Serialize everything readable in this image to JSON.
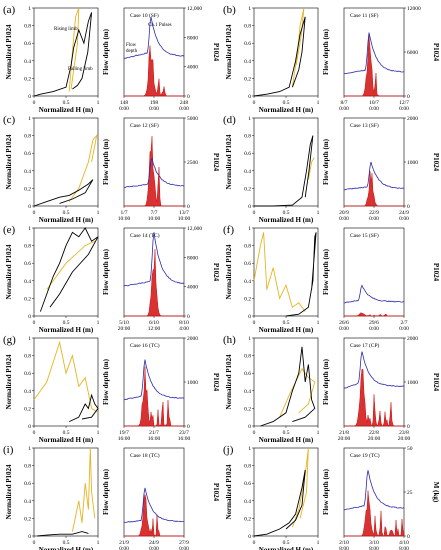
{
  "colors": {
    "hysteresis_event": "#000000",
    "hysteresis_reference": "#e6b422",
    "flow_depth": "#2b2bb0",
    "p1024": "#d10f0f"
  },
  "axis_labels": {
    "normalized_p1024": "Normalized P1024",
    "normalized_h": "Normalized H (m)",
    "flow_depth": "Flow depth (m)",
    "p1024": "P1024",
    "m_kg": "M (kg)"
  },
  "unit_ticks": [
    "0",
    "0.5",
    "1"
  ],
  "chart_data": [
    {
      "id": "a",
      "label": "(a)",
      "case": "Case 10 (SF)",
      "right_axis": "P1024",
      "left_ticks": [
        "0",
        "0.2",
        "0.4",
        "0.6",
        "0.8",
        "1"
      ],
      "right_ticks": [
        "0",
        "4000",
        "8000",
        "12,000"
      ],
      "time_ticks": [
        {
          "day": "148",
          "time": "0:00"
        },
        {
          "day": "198",
          "time": "0:00"
        },
        {
          "day": "248",
          "time": "0:00"
        }
      ],
      "annotations": [
        "Rising limb",
        "Falling limb",
        "Flow depth",
        "Ch.1 Pulses"
      ],
      "peak_pos": 0.45,
      "peak_h": 0.9,
      "base_depth": 0.5,
      "red_peak": 0.72,
      "spikes": 2,
      "hyst_black": [
        [
          0,
          0
        ],
        [
          0.1,
          0.02
        ],
        [
          0.3,
          0.05
        ],
        [
          0.5,
          0.1
        ],
        [
          0.58,
          0.35
        ],
        [
          0.62,
          0.55
        ],
        [
          0.7,
          0.75
        ],
        [
          0.78,
          0.6
        ],
        [
          0.85,
          0.85
        ],
        [
          0.9,
          0.95
        ],
        [
          0.84,
          0.5
        ],
        [
          0.75,
          0.2
        ],
        [
          0.68,
          0.12
        ],
        [
          0.6,
          0.08
        ]
      ],
      "hyst_yellow": [
        [
          0.55,
          0.05
        ],
        [
          0.6,
          0.5
        ],
        [
          0.65,
          0.9
        ],
        [
          0.7,
          1.0
        ],
        [
          0.68,
          0.6
        ],
        [
          0.62,
          0.3
        ],
        [
          0.58,
          0.08
        ]
      ]
    },
    {
      "id": "b",
      "label": "(b)",
      "case": "Case 11 (SF)",
      "right_axis": "P1024",
      "left_ticks": [
        "0",
        "0.2",
        "0.4",
        "0.6",
        "0.8",
        "1"
      ],
      "right_ticks": [
        "0",
        "6000",
        "12000"
      ],
      "time_ticks": [
        {
          "day": "8/7",
          "time": "0:00"
        },
        {
          "day": "10/7",
          "time": "0:00"
        },
        {
          "day": "12/7",
          "time": "0:00"
        }
      ],
      "annotations": [],
      "peak_pos": 0.42,
      "peak_h": 0.72,
      "base_depth": 0.3,
      "red_peak": 0.78,
      "spikes": 1,
      "hyst_black": [
        [
          0,
          0
        ],
        [
          0.2,
          0.02
        ],
        [
          0.4,
          0.05
        ],
        [
          0.55,
          0.1
        ],
        [
          0.65,
          0.4
        ],
        [
          0.72,
          0.7
        ],
        [
          0.8,
          0.9
        ],
        [
          0.75,
          0.5
        ],
        [
          0.7,
          0.3
        ],
        [
          0.6,
          0.1
        ]
      ],
      "hyst_yellow": [
        [
          0.6,
          0.1
        ],
        [
          0.68,
          0.5
        ],
        [
          0.72,
          0.8
        ],
        [
          0.78,
          1.0
        ],
        [
          0.74,
          0.7
        ],
        [
          0.66,
          0.35
        ]
      ]
    },
    {
      "id": "c",
      "label": "(c)",
      "case": "Case 12 (SF)",
      "right_axis": "P1024",
      "left_ticks": [
        "0",
        "0.2",
        "0.4",
        "0.6",
        "0.8",
        "1"
      ],
      "right_ticks": [
        "0",
        "2500",
        "5000"
      ],
      "time_ticks": [
        {
          "day": "1/7",
          "time": "10:00"
        },
        {
          "day": "7/7",
          "time": "10:00"
        },
        {
          "day": "13/7",
          "time": "10:00"
        }
      ],
      "annotations": [],
      "peak_pos": 0.46,
      "peak_h": 0.55,
      "base_depth": 0.25,
      "red_peak": 0.95,
      "spikes": 1,
      "hyst_black": [
        [
          0,
          0
        ],
        [
          0.2,
          0.05
        ],
        [
          0.4,
          0.1
        ],
        [
          0.55,
          0.12
        ],
        [
          0.7,
          0.18
        ],
        [
          0.85,
          0.25
        ],
        [
          0.92,
          0.3
        ],
        [
          0.8,
          0.15
        ],
        [
          0.6,
          0.08
        ],
        [
          0.4,
          0.03
        ]
      ],
      "hyst_yellow": [
        [
          0.55,
          0.05
        ],
        [
          0.7,
          0.2
        ],
        [
          0.85,
          0.5
        ],
        [
          0.92,
          0.75
        ],
        [
          0.98,
          0.8
        ],
        [
          0.9,
          0.5
        ]
      ]
    },
    {
      "id": "d",
      "label": "(d)",
      "case": "Case 13 (SF)",
      "right_axis": "P1024",
      "left_ticks": [
        "0",
        "0.2",
        "0.4",
        "0.6",
        "0.8",
        "1"
      ],
      "right_ticks": [
        "0",
        "1000",
        "2000"
      ],
      "time_ticks": [
        {
          "day": "20/9",
          "time": "0:00"
        },
        {
          "day": "22/9",
          "time": "0:00"
        },
        {
          "day": "24/9",
          "time": "0:00"
        }
      ],
      "annotations": [],
      "peak_pos": 0.45,
      "peak_h": 0.5,
      "base_depth": 0.22,
      "red_peak": 0.45,
      "spikes": 0,
      "hyst_black": [
        [
          0,
          0
        ],
        [
          0.3,
          0.0
        ],
        [
          0.6,
          0.01
        ],
        [
          0.75,
          0.1
        ],
        [
          0.82,
          0.4
        ],
        [
          0.88,
          0.7
        ],
        [
          0.92,
          0.8
        ],
        [
          0.86,
          0.4
        ],
        [
          0.8,
          0.1
        ]
      ],
      "hyst_yellow": [
        [
          0.85,
          0.3
        ],
        [
          0.9,
          0.5
        ],
        [
          0.94,
          0.55
        ]
      ]
    },
    {
      "id": "e",
      "label": "(e)",
      "case": "Case 14 (TC)",
      "right_axis": "P1024",
      "left_ticks": [
        "0",
        "0.2",
        "0.4",
        "0.6",
        "0.8",
        "1"
      ],
      "right_ticks": [
        "0",
        "4000",
        "8000",
        "12,000"
      ],
      "time_ticks": [
        {
          "day": "5/10",
          "time": "20:00"
        },
        {
          "day": "6/10",
          "time": "12:00"
        },
        {
          "day": "8/10",
          "time": "4:00"
        }
      ],
      "annotations": [],
      "peak_pos": 0.5,
      "peak_h": 0.95,
      "base_depth": 0.4,
      "red_peak": 0.9,
      "spikes": 0,
      "hyst_black": [
        [
          0.1,
          0.05
        ],
        [
          0.2,
          0.25
        ],
        [
          0.3,
          0.45
        ],
        [
          0.4,
          0.6
        ],
        [
          0.5,
          0.8
        ],
        [
          0.6,
          0.95
        ],
        [
          0.7,
          0.9
        ],
        [
          0.8,
          1.0
        ],
        [
          0.9,
          0.85
        ],
        [
          1.0,
          0.9
        ],
        [
          0.85,
          0.7
        ],
        [
          0.6,
          0.5
        ],
        [
          0.4,
          0.25
        ],
        [
          0.25,
          0.1
        ]
      ],
      "hyst_yellow": [
        [
          0.2,
          0.3
        ],
        [
          0.35,
          0.45
        ],
        [
          0.5,
          0.6
        ],
        [
          0.65,
          0.7
        ],
        [
          0.8,
          0.8
        ],
        [
          0.95,
          0.85
        ]
      ]
    },
    {
      "id": "f",
      "label": "(f)",
      "case": "Case 15 (SF)",
      "right_axis": "P1024",
      "left_ticks": [
        "0",
        "0.2",
        "0.4",
        "0.6",
        "0.8",
        "1"
      ],
      "right_ticks": [],
      "time_ticks": [
        {
          "day": "26/6",
          "time": "0:00"
        },
        {
          "day": "29/6",
          "time": "0:00"
        },
        {
          "day": "2/7",
          "time": "0:00"
        }
      ],
      "annotations": [],
      "peak_pos": 0.3,
      "peak_h": 0.35,
      "base_depth": 0.18,
      "red_peak": 0.05,
      "spikes": 4,
      "hyst_black": [
        [
          0.5,
          0.0
        ],
        [
          0.7,
          0.02
        ],
        [
          0.85,
          0.1
        ],
        [
          0.92,
          0.4
        ],
        [
          0.95,
          0.9
        ],
        [
          0.97,
          0.95
        ],
        [
          0.9,
          0.3
        ]
      ],
      "hyst_yellow": [
        [
          0,
          0.4
        ],
        [
          0.1,
          0.8
        ],
        [
          0.15,
          0.95
        ],
        [
          0.2,
          0.3
        ],
        [
          0.3,
          0.55
        ],
        [
          0.4,
          0.2
        ],
        [
          0.5,
          0.35
        ],
        [
          0.6,
          0.1
        ],
        [
          0.7,
          0.15
        ],
        [
          0.8,
          0.05
        ]
      ]
    },
    {
      "id": "g",
      "label": "(g)",
      "case": "Case 16 (TC)",
      "right_axis": "P1024",
      "left_ticks": [
        "0",
        "0.2",
        "0.4",
        "0.6",
        "0.8",
        "1"
      ],
      "right_ticks": [
        "0",
        "1000",
        "2000"
      ],
      "time_ticks": [
        {
          "day": "19/7",
          "time": "16:00"
        },
        {
          "day": "21/7",
          "time": "16:00"
        },
        {
          "day": "23/7",
          "time": "16:00"
        }
      ],
      "annotations": [],
      "peak_pos": 0.35,
      "peak_h": 0.75,
      "base_depth": 0.35,
      "red_peak": 0.7,
      "spikes": 4,
      "hyst_black": [
        [
          0.55,
          0.05
        ],
        [
          0.7,
          0.1
        ],
        [
          0.8,
          0.25
        ],
        [
          0.85,
          0.2
        ],
        [
          0.9,
          0.35
        ],
        [
          0.95,
          0.25
        ],
        [
          1.0,
          0.2
        ],
        [
          0.9,
          0.1
        ],
        [
          0.75,
          0.08
        ]
      ],
      "hyst_yellow": [
        [
          0,
          0.3
        ],
        [
          0.2,
          0.5
        ],
        [
          0.4,
          0.95
        ],
        [
          0.5,
          0.6
        ],
        [
          0.6,
          0.8
        ],
        [
          0.7,
          0.45
        ],
        [
          0.8,
          0.55
        ],
        [
          0.9,
          0.2
        ],
        [
          1.0,
          0.15
        ]
      ]
    },
    {
      "id": "h",
      "label": "(h)",
      "case": "Case 17 (CP)",
      "right_axis": "P1024",
      "left_ticks": [
        "0",
        "0.2",
        "0.4",
        "0.6",
        "0.8",
        "1"
      ],
      "right_ticks": [
        "0",
        "1000",
        "2000"
      ],
      "time_ticks": [
        {
          "day": "21/8",
          "time": "20:00"
        },
        {
          "day": "22/8",
          "time": "20:00"
        },
        {
          "day": "23/8",
          "time": "20:00"
        }
      ],
      "annotations": [],
      "peak_pos": 0.3,
      "peak_h": 0.85,
      "base_depth": 0.5,
      "red_peak": 0.8,
      "spikes": 5,
      "hyst_black": [
        [
          0.1,
          0.0
        ],
        [
          0.3,
          0.05
        ],
        [
          0.5,
          0.15
        ],
        [
          0.6,
          0.4
        ],
        [
          0.7,
          0.6
        ],
        [
          0.75,
          0.9
        ],
        [
          0.8,
          0.5
        ],
        [
          0.85,
          0.7
        ],
        [
          0.9,
          0.3
        ],
        [
          0.95,
          0.2
        ],
        [
          0.8,
          0.1
        ],
        [
          0.6,
          0.05
        ]
      ],
      "hyst_yellow": [
        [
          0.4,
          0.1
        ],
        [
          0.55,
          0.35
        ],
        [
          0.65,
          0.5
        ],
        [
          0.75,
          0.65
        ],
        [
          0.85,
          0.55
        ],
        [
          0.95,
          0.5
        ],
        [
          0.85,
          0.25
        ],
        [
          0.7,
          0.15
        ]
      ]
    },
    {
      "id": "i",
      "label": "(i)",
      "case": "Case 18 (TC)",
      "right_axis": "P1024",
      "left_ticks": [
        "0",
        "0.2",
        "0.4",
        "0.6",
        "0.8",
        "1"
      ],
      "right_ticks": [],
      "time_ticks": [
        {
          "day": "21/9",
          "time": "0:00"
        },
        {
          "day": "24/9",
          "time": "0:00"
        },
        {
          "day": "27/9",
          "time": "0:00"
        }
      ],
      "annotations": [],
      "peak_pos": 0.35,
      "peak_h": 0.55,
      "base_depth": 0.18,
      "red_peak": 0.55,
      "spikes": 2,
      "hyst_black": [
        [
          0.05,
          0.0
        ],
        [
          0.2,
          0.01
        ],
        [
          0.4,
          0.02
        ],
        [
          0.6,
          0.02
        ],
        [
          0.75,
          0.05
        ],
        [
          0.85,
          0.03
        ]
      ],
      "hyst_yellow": [
        [
          0.6,
          0.05
        ],
        [
          0.7,
          0.4
        ],
        [
          0.75,
          0.15
        ],
        [
          0.8,
          0.6
        ],
        [
          0.85,
          0.3
        ],
        [
          0.88,
          1.0
        ],
        [
          0.9,
          0.5
        ],
        [
          0.95,
          0.2
        ]
      ]
    },
    {
      "id": "j",
      "label": "(j)",
      "case": "Case 19 (TC)",
      "right_axis": "M (kg)",
      "left_ticks": [
        "0",
        "0.2",
        "0.4",
        "0.6",
        "0.8",
        "1"
      ],
      "right_ticks": [
        "0",
        "25",
        "50"
      ],
      "time_ticks": [
        {
          "day": "2/10",
          "time": "8:00"
        },
        {
          "day": "3/10",
          "time": "8:00"
        },
        {
          "day": "4/10",
          "time": "8:00"
        }
      ],
      "annotations": [],
      "peak_pos": 0.4,
      "peak_h": 0.75,
      "base_depth": 0.35,
      "red_peak": 0.55,
      "spikes": 6,
      "hyst_black": [
        [
          0,
          0.0
        ],
        [
          0.2,
          0.02
        ],
        [
          0.4,
          0.08
        ],
        [
          0.55,
          0.15
        ],
        [
          0.65,
          0.25
        ],
        [
          0.75,
          0.55
        ],
        [
          0.8,
          0.75
        ],
        [
          0.75,
          0.35
        ],
        [
          0.65,
          0.18
        ],
        [
          0.5,
          0.08
        ]
      ],
      "hyst_yellow": [
        [
          0.6,
          0.1
        ],
        [
          0.7,
          0.3
        ],
        [
          0.8,
          0.7
        ],
        [
          0.85,
          1.0
        ],
        [
          0.82,
          0.5
        ],
        [
          0.72,
          0.2
        ]
      ]
    }
  ]
}
